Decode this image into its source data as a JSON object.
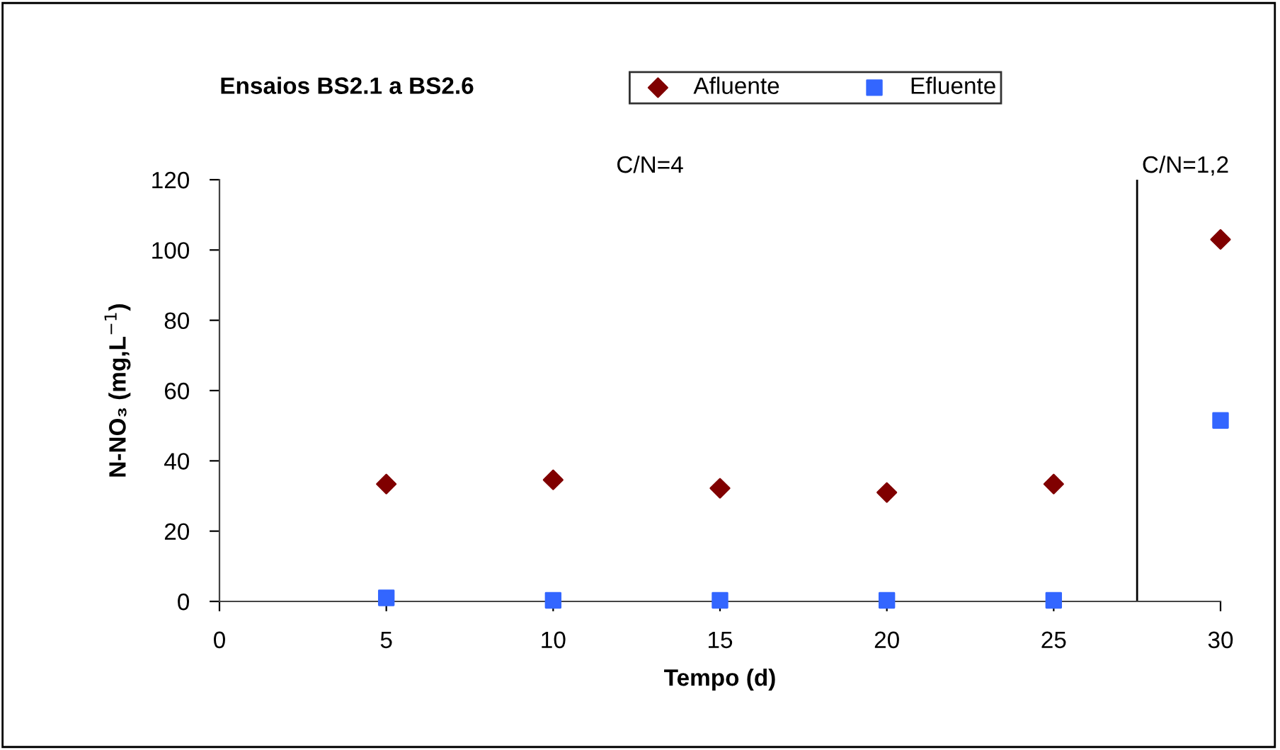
{
  "chart_data": {
    "type": "scatter",
    "title": "Ensaios BS2.1 a BS2.6",
    "xlabel": "Tempo (d)",
    "ylabel": "N-NO₃ (mg,L$^{−1}$)",
    "x": [
      5,
      10,
      15,
      20,
      25,
      30
    ],
    "series": [
      {
        "name": "Afluente",
        "color": "#800000",
        "marker": "diamond",
        "values": [
          33.4,
          34.6,
          32.2,
          31,
          33.4,
          103
        ]
      },
      {
        "name": "Efluente",
        "color": "#3366ff",
        "marker": "square",
        "values": [
          1,
          0.3,
          0.3,
          0.3,
          0.3,
          51.5
        ]
      }
    ],
    "xlim": [
      0,
      30
    ],
    "xticks": [
      0,
      5,
      10,
      15,
      20,
      25,
      30
    ],
    "ylim": [
      0,
      120
    ],
    "yticks": [
      0,
      20,
      40,
      60,
      80,
      100,
      120
    ],
    "ref_lines": [
      {
        "axis": "x",
        "value": 27.5,
        "color": "#000000"
      }
    ],
    "annotations": [
      "C/N=4",
      "C/N=1,2"
    ],
    "grid": false,
    "legend": "top"
  }
}
